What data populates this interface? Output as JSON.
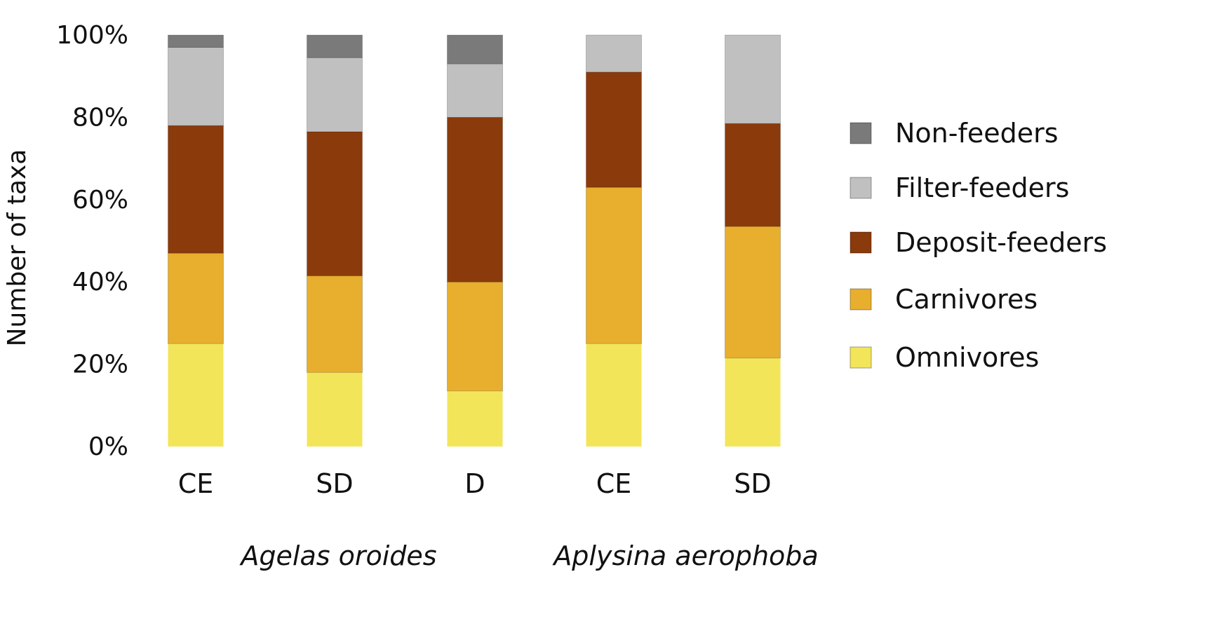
{
  "chart_data": {
    "type": "bar",
    "stacked": true,
    "percent": true,
    "categories": [
      "CE",
      "SD",
      "D",
      "CE",
      "SD"
    ],
    "groups": [
      {
        "label": "Agelas oroides",
        "categories": [
          0,
          1,
          2
        ]
      },
      {
        "label": "Aplysina aerophoba",
        "categories": [
          3,
          4
        ]
      }
    ],
    "series": [
      {
        "name": "Omnivores",
        "color": "#F3E55A",
        "values": [
          25,
          18,
          13.5,
          25,
          21.5
        ]
      },
      {
        "name": "Carnivores",
        "color": "#E8AE2D",
        "values": [
          22,
          23.5,
          26.5,
          38,
          32
        ]
      },
      {
        "name": "Deposit-feeders",
        "color": "#8B3A0C",
        "values": [
          31,
          35,
          40,
          28,
          25
        ]
      },
      {
        "name": "Filter-feeders",
        "color": "#C0C0C0",
        "values": [
          19,
          18,
          13,
          9,
          21.5
        ]
      },
      {
        "name": "Non-feeders",
        "color": "#7A7A7A",
        "values": [
          3,
          5.5,
          7,
          0,
          0
        ]
      }
    ],
    "ylabel": "Number of taxa",
    "xlabel": "",
    "ylim": [
      0,
      100
    ],
    "yticks": [
      "0%",
      "20%",
      "40%",
      "60%",
      "80%",
      "100%"
    ],
    "grid": false,
    "legend_position": "right",
    "legend_order": [
      "Non-feeders",
      "Filter-feeders",
      "Deposit-feeders",
      "Carnivores",
      "Omnivores"
    ]
  }
}
